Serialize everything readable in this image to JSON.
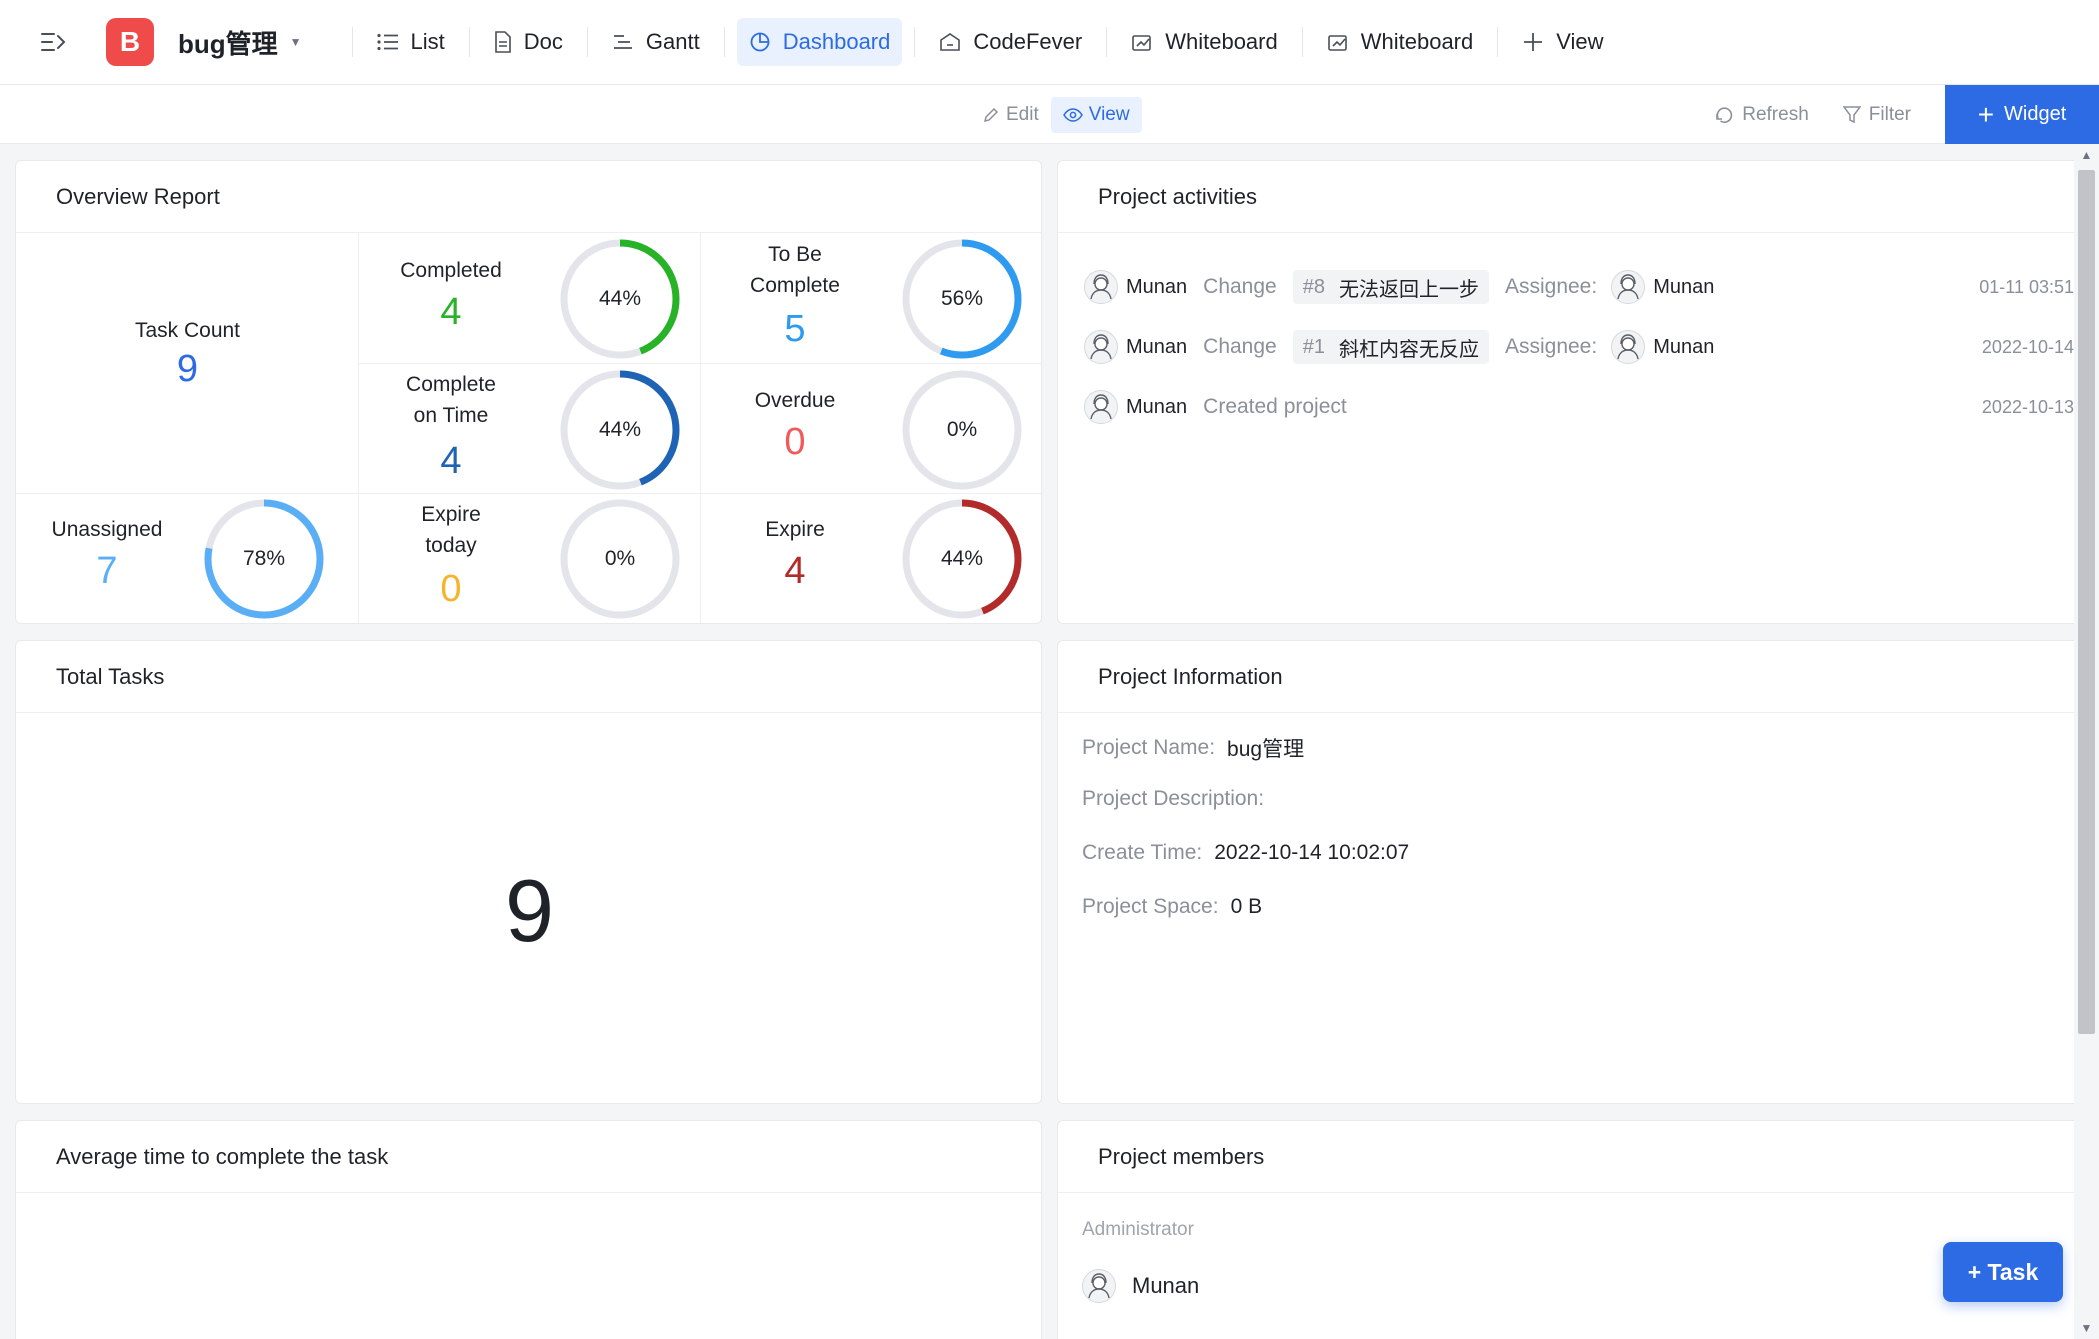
{
  "project": {
    "logo_letter": "B",
    "name": "bug管理"
  },
  "nav": {
    "tabs": [
      {
        "label": "List",
        "icon": "list-icon"
      },
      {
        "label": "Doc",
        "icon": "doc-icon"
      },
      {
        "label": "Gantt",
        "icon": "gantt-icon"
      },
      {
        "label": "Dashboard",
        "icon": "dashboard-icon",
        "active": true
      },
      {
        "label": "CodeFever",
        "icon": "codefever-icon"
      },
      {
        "label": "Whiteboard",
        "icon": "whiteboard-icon"
      },
      {
        "label": "Whiteboard",
        "icon": "whiteboard-icon"
      },
      {
        "label": "View",
        "icon": "plus-icon"
      }
    ]
  },
  "toolbar": {
    "edit_label": "Edit",
    "view_label": "View",
    "refresh_label": "Refresh",
    "filter_label": "Filter",
    "widget_label": "Widget"
  },
  "overview": {
    "title": "Overview Report",
    "task_count": {
      "label": "Task Count",
      "value": "9",
      "color": "#2d6be4"
    },
    "completed": {
      "label": "Completed",
      "value": "4",
      "percent": "44%",
      "fraction": 0.44,
      "color": "#27b227"
    },
    "to_be_complete": {
      "label_line1": "To Be",
      "label_line2": "Complete",
      "value": "5",
      "percent": "56%",
      "fraction": 0.56,
      "color": "#2f9bf0"
    },
    "complete_on_time": {
      "label_line1": "Complete",
      "label_line2": "on Time",
      "value": "4",
      "percent": "44%",
      "fraction": 0.44,
      "color": "#1f63b5"
    },
    "overdue": {
      "label": "Overdue",
      "value": "0",
      "percent": "0%",
      "fraction": 0,
      "color": "#ef5b5b"
    },
    "unassigned": {
      "label": "Unassigned",
      "value": "7",
      "percent": "78%",
      "fraction": 0.78,
      "color": "#5aaef5"
    },
    "expire_today": {
      "label_line1": "Expire",
      "label_line2": "today",
      "value": "0",
      "percent": "0%",
      "fraction": 0,
      "color": "#f5b42a"
    },
    "expire": {
      "label": "Expire",
      "value": "4",
      "percent": "44%",
      "fraction": 0.44,
      "color": "#b32a2a"
    }
  },
  "activities": {
    "title": "Project activities",
    "items": [
      {
        "user": "Munan",
        "verb": "Change",
        "task_num": "#8",
        "task_name": "无法返回上一步",
        "assignee_label": "Assignee:",
        "assignee": "Munan",
        "time": "01-11 03:51"
      },
      {
        "user": "Munan",
        "verb": "Change",
        "task_num": "#1",
        "task_name": "斜杠内容无反应",
        "assignee_label": "Assignee:",
        "assignee": "Munan",
        "time": "2022-10-14"
      },
      {
        "user": "Munan",
        "verb": "Created project",
        "time": "2022-10-13"
      }
    ]
  },
  "total_tasks": {
    "title": "Total Tasks",
    "value": "9"
  },
  "project_info": {
    "title": "Project Information",
    "name_label": "Project Name:",
    "name_value": "bug管理",
    "desc_label": "Project Description:",
    "desc_value": "",
    "time_label": "Create Time:",
    "time_value": "2022-10-14 10:02:07",
    "space_label": "Project Space:",
    "space_value": "0 B"
  },
  "avg_time": {
    "title": "Average time to complete the task"
  },
  "members": {
    "title": "Project members",
    "role": "Administrator",
    "member": "Munan"
  },
  "task_button": "+ Task"
}
